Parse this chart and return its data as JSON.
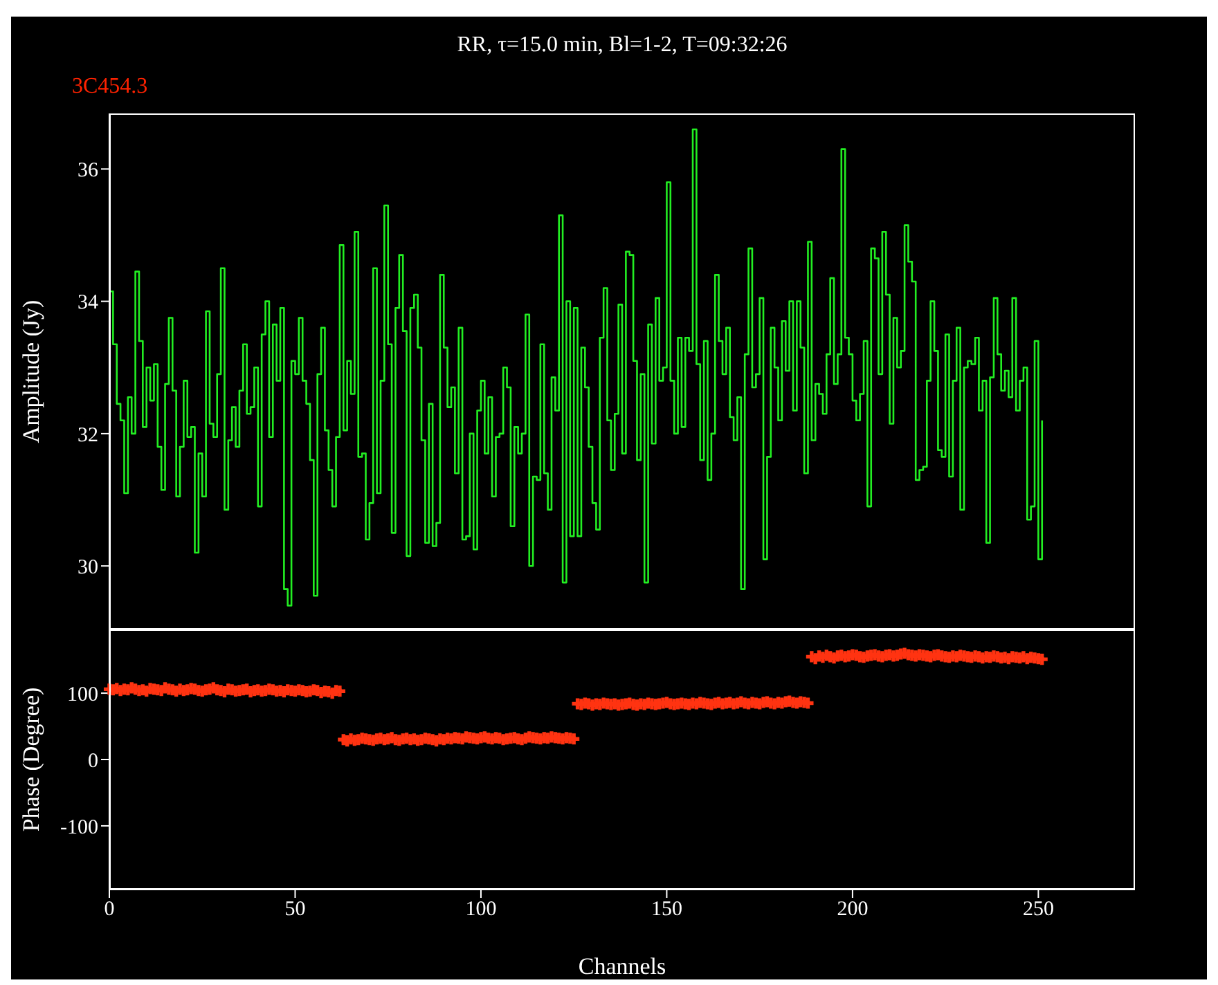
{
  "chart_data": [
    {
      "type": "step",
      "title": "RR, τ=15.0 min, Bl=1-2, T=09:32:26",
      "annotations": [
        "3C454.3"
      ],
      "ylabel": "Amplitude (Jy)",
      "tick_labels": "y",
      "xlim": [
        0,
        276
      ],
      "xticks": [
        0,
        50,
        100,
        150,
        200,
        250
      ],
      "ylim": [
        29.04,
        36.84
      ],
      "yticks": [
        30,
        32,
        34,
        36
      ],
      "x": [
        0,
        1,
        2,
        3,
        4,
        5,
        6,
        7,
        8,
        9,
        10,
        11,
        12,
        13,
        14,
        15,
        16,
        17,
        18,
        19,
        20,
        21,
        22,
        23,
        24,
        25,
        26,
        27,
        28,
        29,
        30,
        31,
        32,
        33,
        34,
        35,
        36,
        37,
        38,
        39,
        40,
        41,
        42,
        43,
        44,
        45,
        46,
        47,
        48,
        49,
        50,
        51,
        52,
        53,
        54,
        55,
        56,
        57,
        58,
        59,
        60,
        61,
        62,
        63,
        64,
        65,
        66,
        67,
        68,
        69,
        70,
        71,
        72,
        73,
        74,
        75,
        76,
        77,
        78,
        79,
        80,
        81,
        82,
        83,
        84,
        85,
        86,
        87,
        88,
        89,
        90,
        91,
        92,
        93,
        94,
        95,
        96,
        97,
        98,
        99,
        100,
        101,
        102,
        103,
        104,
        105,
        106,
        107,
        108,
        109,
        110,
        111,
        112,
        113,
        114,
        115,
        116,
        117,
        118,
        119,
        120,
        121,
        122,
        123,
        124,
        125,
        126,
        127,
        128,
        129,
        130,
        131,
        132,
        133,
        134,
        135,
        136,
        137,
        138,
        139,
        140,
        141,
        142,
        143,
        144,
        145,
        146,
        147,
        148,
        149,
        150,
        151,
        152,
        153,
        154,
        155,
        156,
        157,
        158,
        159,
        160,
        161,
        162,
        163,
        164,
        165,
        166,
        167,
        168,
        169,
        170,
        171,
        172,
        173,
        174,
        175,
        176,
        177,
        178,
        179,
        180,
        181,
        182,
        183,
        184,
        185,
        186,
        187,
        188,
        189,
        190,
        191,
        192,
        193,
        194,
        195,
        196,
        197,
        198,
        199,
        200,
        201,
        202,
        203,
        204,
        205,
        206,
        207,
        208,
        209,
        210,
        211,
        212,
        213,
        214,
        215,
        216,
        217,
        218,
        219,
        220,
        221,
        222,
        223,
        224,
        225,
        226,
        227,
        228,
        229,
        230,
        231,
        232,
        233,
        234,
        235,
        236,
        237,
        238,
        239,
        240,
        241,
        242,
        243,
        244,
        245,
        246,
        247,
        248,
        249,
        250,
        251
      ],
      "series": [
        {
          "color": "#22ee22",
          "values": [
            34.15,
            33.35,
            32.45,
            32.2,
            31.1,
            32.55,
            32.0,
            34.45,
            33.4,
            32.1,
            33.0,
            32.5,
            33.05,
            31.8,
            31.15,
            32.75,
            33.75,
            32.65,
            31.05,
            31.8,
            32.8,
            31.95,
            32.1,
            30.2,
            31.7,
            31.05,
            33.85,
            32.15,
            31.95,
            32.9,
            34.5,
            30.85,
            31.9,
            32.4,
            31.8,
            32.65,
            33.35,
            32.3,
            32.4,
            33.0,
            30.9,
            33.5,
            34.0,
            31.95,
            33.65,
            32.8,
            33.9,
            29.65,
            29.4,
            33.1,
            32.9,
            33.75,
            32.8,
            32.45,
            31.6,
            29.55,
            32.9,
            33.6,
            32.05,
            31.45,
            30.9,
            31.95,
            34.85,
            32.05,
            33.1,
            32.6,
            35.05,
            31.65,
            31.7,
            30.4,
            30.95,
            34.5,
            31.1,
            32.8,
            35.45,
            33.35,
            30.5,
            33.9,
            34.7,
            33.55,
            30.15,
            33.9,
            34.1,
            33.3,
            31.9,
            30.35,
            32.45,
            30.3,
            30.65,
            34.4,
            33.3,
            32.4,
            32.7,
            31.4,
            33.6,
            30.4,
            30.45,
            32.0,
            30.25,
            32.35,
            32.8,
            31.7,
            32.55,
            31.05,
            31.95,
            32.0,
            33.0,
            32.7,
            30.6,
            32.1,
            31.7,
            32.0,
            33.8,
            30.0,
            31.35,
            31.3,
            33.35,
            31.4,
            30.85,
            32.85,
            32.35,
            35.3,
            29.75,
            34.0,
            30.45,
            33.9,
            30.45,
            33.3,
            32.7,
            31.8,
            30.95,
            30.55,
            33.45,
            34.2,
            32.2,
            31.45,
            32.3,
            33.95,
            31.7,
            34.75,
            34.7,
            33.1,
            31.6,
            32.9,
            29.75,
            33.65,
            31.85,
            34.05,
            32.8,
            33.0,
            35.8,
            32.8,
            32.0,
            33.45,
            32.1,
            33.45,
            33.25,
            36.6,
            33.05,
            31.6,
            33.4,
            31.3,
            32.0,
            34.4,
            33.4,
            32.9,
            33.6,
            32.25,
            31.9,
            32.55,
            29.65,
            33.2,
            34.8,
            32.7,
            32.9,
            34.05,
            30.1,
            31.65,
            33.6,
            33.0,
            32.2,
            33.7,
            32.95,
            34.0,
            32.35,
            34.0,
            33.3,
            31.4,
            34.9,
            31.9,
            32.75,
            32.6,
            32.3,
            33.2,
            34.35,
            32.75,
            33.2,
            36.3,
            33.45,
            33.2,
            32.5,
            32.2,
            32.6,
            33.4,
            30.9,
            34.8,
            34.65,
            32.9,
            35.05,
            34.1,
            32.15,
            33.75,
            33.0,
            33.25,
            35.15,
            34.6,
            34.3,
            31.3,
            31.45,
            31.5,
            32.8,
            34.0,
            33.25,
            31.75,
            31.65,
            33.5,
            31.35,
            32.8,
            33.6,
            30.85,
            33.0,
            33.1,
            33.05,
            33.45,
            32.35,
            32.8,
            30.35,
            32.85,
            34.05,
            33.2,
            32.65,
            32.95,
            32.55,
            34.05,
            32.35,
            32.8,
            33.0,
            30.7,
            30.9,
            33.4,
            30.1,
            32.2
          ]
        }
      ]
    },
    {
      "type": "scatter",
      "xlabel": "Channels",
      "ylabel": "Phase (Degree)",
      "marker": "cross",
      "xlim": [
        0,
        276
      ],
      "xticks": [
        0,
        50,
        100,
        150,
        200,
        250
      ],
      "ylim": [
        -196,
        196
      ],
      "yticks": [
        -100,
        0,
        100
      ],
      "x": [
        0,
        1,
        2,
        3,
        4,
        5,
        6,
        7,
        8,
        9,
        10,
        11,
        12,
        13,
        14,
        15,
        16,
        17,
        18,
        19,
        20,
        21,
        22,
        23,
        24,
        25,
        26,
        27,
        28,
        29,
        30,
        31,
        32,
        33,
        34,
        35,
        36,
        37,
        38,
        39,
        40,
        41,
        42,
        43,
        44,
        45,
        46,
        47,
        48,
        49,
        50,
        51,
        52,
        53,
        54,
        55,
        56,
        57,
        58,
        59,
        60,
        61,
        62,
        63,
        64,
        65,
        66,
        67,
        68,
        69,
        70,
        71,
        72,
        73,
        74,
        75,
        76,
        77,
        78,
        79,
        80,
        81,
        82,
        83,
        84,
        85,
        86,
        87,
        88,
        89,
        90,
        91,
        92,
        93,
        94,
        95,
        96,
        97,
        98,
        99,
        100,
        101,
        102,
        103,
        104,
        105,
        106,
        107,
        108,
        109,
        110,
        111,
        112,
        113,
        114,
        115,
        116,
        117,
        118,
        119,
        120,
        121,
        122,
        123,
        124,
        125,
        126,
        127,
        128,
        129,
        130,
        131,
        132,
        133,
        134,
        135,
        136,
        137,
        138,
        139,
        140,
        141,
        142,
        143,
        144,
        145,
        146,
        147,
        148,
        149,
        150,
        151,
        152,
        153,
        154,
        155,
        156,
        157,
        158,
        159,
        160,
        161,
        162,
        163,
        164,
        165,
        166,
        167,
        168,
        169,
        170,
        171,
        172,
        173,
        174,
        175,
        176,
        177,
        178,
        179,
        180,
        181,
        182,
        183,
        184,
        185,
        186,
        187,
        188,
        189,
        190,
        191,
        192,
        193,
        194,
        195,
        196,
        197,
        198,
        199,
        200,
        201,
        202,
        203,
        204,
        205,
        206,
        207,
        208,
        209,
        210,
        211,
        212,
        213,
        214,
        215,
        216,
        217,
        218,
        219,
        220,
        221,
        222,
        223,
        224,
        225,
        226,
        227,
        228,
        229,
        230,
        231,
        232,
        233,
        234,
        235,
        236,
        237,
        238,
        239,
        240,
        241,
        242,
        243,
        244,
        245,
        246,
        247,
        248,
        249,
        250,
        251
      ],
      "series": [
        {
          "color": "#ff3311",
          "values": [
            106,
            105,
            107,
            104,
            106,
            105,
            108,
            106,
            104,
            105,
            103,
            107,
            106,
            105,
            104,
            108,
            106,
            105,
            103,
            106,
            104,
            105,
            107,
            106,
            104,
            103,
            105,
            106,
            108,
            105,
            104,
            102,
            106,
            105,
            103,
            104,
            105,
            106,
            102,
            104,
            105,
            103,
            104,
            106,
            105,
            103,
            104,
            102,
            105,
            104,
            103,
            105,
            104,
            102,
            103,
            105,
            104,
            101,
            103,
            102,
            100,
            104,
            103,
            30,
            28,
            31,
            29,
            30,
            32,
            31,
            30,
            29,
            31,
            32,
            30,
            31,
            33,
            30,
            29,
            31,
            32,
            30,
            31,
            29,
            30,
            32,
            31,
            30,
            28,
            31,
            30,
            32,
            31,
            33,
            32,
            31,
            34,
            33,
            32,
            31,
            33,
            34,
            32,
            31,
            33,
            32,
            30,
            31,
            32,
            33,
            31,
            30,
            32,
            34,
            33,
            32,
            31,
            33,
            32,
            34,
            33,
            32,
            31,
            33,
            32,
            31,
            84,
            83,
            85,
            84,
            82,
            84,
            83,
            85,
            84,
            83,
            84,
            82,
            83,
            84,
            85,
            83,
            82,
            84,
            83,
            85,
            84,
            83,
            84,
            85,
            86,
            84,
            83,
            84,
            85,
            84,
            83,
            85,
            84,
            86,
            85,
            84,
            83,
            85,
            86,
            84,
            85,
            86,
            84,
            85,
            87,
            85,
            84,
            86,
            85,
            84,
            86,
            87,
            85,
            84,
            86,
            85,
            87,
            88,
            86,
            85,
            87,
            86,
            85,
            155,
            152,
            156,
            154,
            157,
            155,
            153,
            156,
            157,
            155,
            156,
            158,
            157,
            155,
            154,
            156,
            157,
            158,
            156,
            155,
            157,
            158,
            156,
            157,
            159,
            160,
            158,
            157,
            156,
            158,
            157,
            156,
            155,
            157,
            158,
            156,
            155,
            154,
            156,
            155,
            157,
            156,
            155,
            154,
            156,
            155,
            153,
            155,
            154,
            156,
            155,
            153,
            154,
            152,
            155,
            154,
            153,
            155,
            152,
            154,
            153,
            152,
            151
          ]
        }
      ]
    }
  ]
}
